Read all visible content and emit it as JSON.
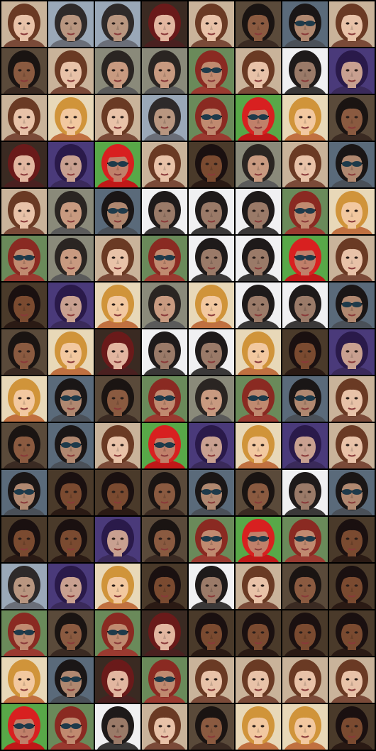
{
  "grid": {
    "columns": 8,
    "rows": 16,
    "background_color": "#000000"
  },
  "palette": {
    "A": {
      "bg": "#c9b39a",
      "skin": "#e8c2a8",
      "hair": "#6a3a24",
      "shirt": "#7a4a38",
      "glasses": false,
      "cap": false
    },
    "B": {
      "bg": "#8a8a7a",
      "skin": "#c89a80",
      "hair": "#2a2522",
      "shirt": "#5a5a5a",
      "glasses": false,
      "cap": false
    },
    "C": {
      "bg": "#9aa8b8",
      "skin": "#b89680",
      "hair": "#2e2a2a",
      "shirt": "#6a6e78",
      "glasses": false,
      "cap": false
    },
    "D": {
      "bg": "#3a2a22",
      "skin": "#e2b6a0",
      "hair": "#6a1a1a",
      "shirt": "#4a2020",
      "glasses": false,
      "cap": false
    },
    "E": {
      "bg": "#5a4a3a",
      "skin": "#8a5a40",
      "hair": "#1a1412",
      "shirt": "#3a2a22",
      "glasses": false,
      "cap": false
    },
    "F": {
      "bg": "#6a8a5a",
      "skin": "#c08a70",
      "hair": "#8a2a22",
      "shirt": "#9a3a30",
      "glasses": true,
      "cap": false
    },
    "G": {
      "bg": "#4a3a7a",
      "skin": "#c8a090",
      "hair": "#2a1a4a",
      "shirt": "#3a2a5a",
      "glasses": false,
      "cap": false
    },
    "H": {
      "bg": "#e8d8b8",
      "skin": "#f2c8a0",
      "hair": "#d0943a",
      "shirt": "#c07040",
      "glasses": false,
      "cap": false
    },
    "I": {
      "bg": "#58a848",
      "skin": "#c0806a",
      "hair": "#d82020",
      "shirt": "#c01818",
      "glasses": true,
      "cap": true
    },
    "J": {
      "bg": "#f0f0f2",
      "skin": "#9a7a68",
      "hair": "#1e1a1a",
      "shirt": "#3a3838",
      "glasses": false,
      "cap": false
    },
    "K": {
      "bg": "#4a3a2a",
      "skin": "#7a4a30",
      "hair": "#1a1010",
      "shirt": "#2a1a14",
      "glasses": false,
      "cap": false
    },
    "L": {
      "bg": "#5a6a7a",
      "skin": "#b08870",
      "hair": "#1a1616",
      "shirt": "#4a5058",
      "glasses": true,
      "cap": false
    }
  },
  "tiles": [
    "A",
    "C",
    "C",
    "D",
    "A",
    "E",
    "L",
    "A",
    "E",
    "A",
    "B",
    "B",
    "F",
    "A",
    "J",
    "G",
    "A",
    "H",
    "A",
    "C",
    "F",
    "I",
    "H",
    "E",
    "D",
    "G",
    "I",
    "A",
    "K",
    "B",
    "A",
    "L",
    "A",
    "B",
    "L",
    "J",
    "J",
    "J",
    "F",
    "H",
    "F",
    "B",
    "A",
    "F",
    "J",
    "J",
    "I",
    "A",
    "K",
    "G",
    "H",
    "B",
    "H",
    "J",
    "J",
    "L",
    "E",
    "H",
    "D",
    "J",
    "J",
    "H",
    "K",
    "G",
    "H",
    "L",
    "E",
    "F",
    "B",
    "F",
    "L",
    "A",
    "E",
    "L",
    "A",
    "I",
    "G",
    "H",
    "G",
    "A",
    "L",
    "K",
    "K",
    "E",
    "L",
    "E",
    "J",
    "L",
    "K",
    "K",
    "G",
    "E",
    "F",
    "I",
    "F",
    "K",
    "C",
    "G",
    "H",
    "K",
    "J",
    "A",
    "E",
    "K",
    "F",
    "E",
    "F",
    "D",
    "K",
    "K",
    "K",
    "K",
    "H",
    "L",
    "D",
    "F",
    "A",
    "A",
    "A",
    "A",
    "I",
    "F",
    "J",
    "A",
    "E",
    "H",
    "H",
    "K"
  ]
}
